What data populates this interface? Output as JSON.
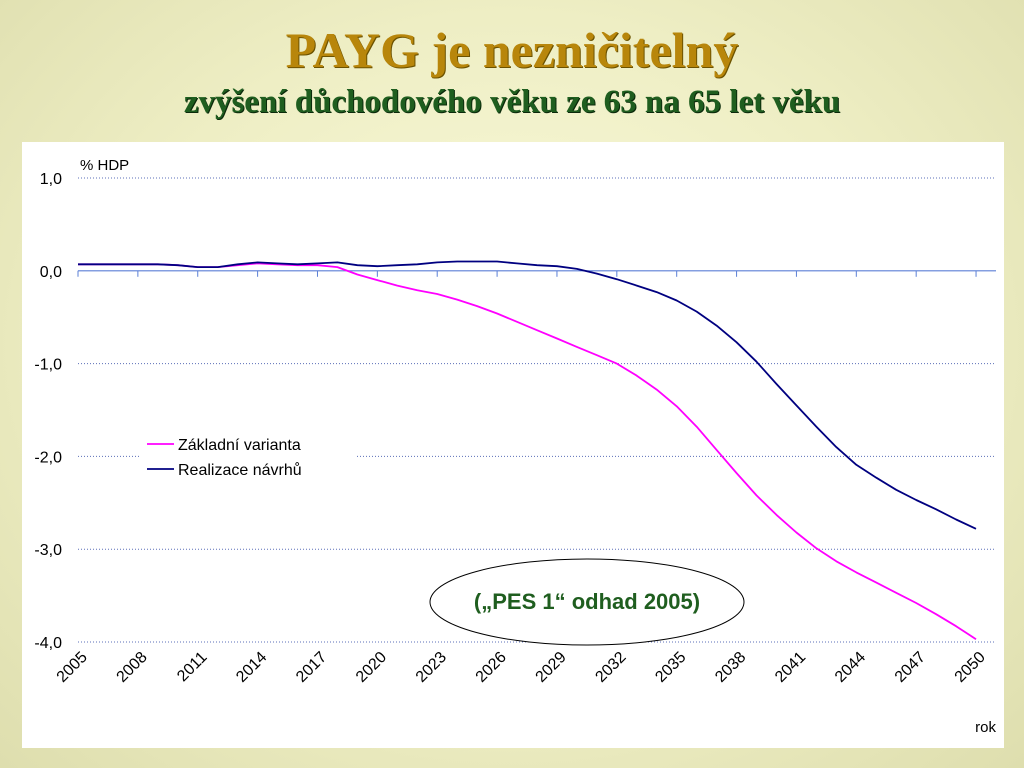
{
  "header": {
    "title": "PAYG je nezničitelný",
    "subtitle": "zvýšení  důchodového věku ze 63 na 65 let věku"
  },
  "chart_data": {
    "type": "line",
    "ylabel": "% HDP",
    "xlabel": "rok",
    "ylim": [
      -4.0,
      1.0
    ],
    "xlim": [
      2005,
      2051
    ],
    "y_ticks": [
      1.0,
      0.0,
      -1.0,
      -2.0,
      -3.0,
      -4.0
    ],
    "y_tick_labels": [
      "1,0",
      "0,0",
      "-1,0",
      "-2,0",
      "-3,0",
      "-4,0"
    ],
    "x_ticks": [
      "2005",
      "2008",
      "2011",
      "2014",
      "2017",
      "2020",
      "2023",
      "2026",
      "2029",
      "2032",
      "2035",
      "2038",
      "2041",
      "2044",
      "2047",
      "2050"
    ],
    "grid": "horizontal dotted",
    "legend_position": "left-middle",
    "annotation": "(„PES 1“ odhad 2005)",
    "colors": {
      "zakladni": "#ff00ff",
      "realizace": "#000080",
      "zero_axis": "#5b7fd6"
    },
    "series": [
      {
        "name": "Základní varianta",
        "x": [
          2005,
          2006,
          2007,
          2008,
          2009,
          2010,
          2011,
          2012,
          2013,
          2014,
          2015,
          2016,
          2017,
          2018,
          2019,
          2020,
          2021,
          2022,
          2023,
          2024,
          2025,
          2026,
          2027,
          2028,
          2029,
          2030,
          2031,
          2032,
          2033,
          2034,
          2035,
          2036,
          2037,
          2038,
          2039,
          2040,
          2041,
          2042,
          2043,
          2044,
          2045,
          2046,
          2047,
          2048,
          2049,
          2050
        ],
        "values": [
          0.07,
          0.07,
          0.07,
          0.07,
          0.07,
          0.06,
          0.04,
          0.04,
          0.06,
          0.08,
          0.07,
          0.06,
          0.06,
          0.04,
          -0.04,
          -0.1,
          -0.16,
          -0.21,
          -0.25,
          -0.31,
          -0.38,
          -0.46,
          -0.55,
          -0.64,
          -0.73,
          -0.82,
          -0.91,
          -1.0,
          -1.13,
          -1.28,
          -1.46,
          -1.68,
          -1.93,
          -2.18,
          -2.42,
          -2.63,
          -2.82,
          -2.99,
          -3.13,
          -3.25,
          -3.36,
          -3.47,
          -3.58,
          -3.7,
          -3.83,
          -3.97
        ]
      },
      {
        "name": "Realizace návrhů",
        "x": [
          2005,
          2006,
          2007,
          2008,
          2009,
          2010,
          2011,
          2012,
          2013,
          2014,
          2015,
          2016,
          2017,
          2018,
          2019,
          2020,
          2021,
          2022,
          2023,
          2024,
          2025,
          2026,
          2027,
          2028,
          2029,
          2030,
          2031,
          2032,
          2033,
          2034,
          2035,
          2036,
          2037,
          2038,
          2039,
          2040,
          2041,
          2042,
          2043,
          2044,
          2045,
          2046,
          2047,
          2048,
          2049,
          2050
        ],
        "values": [
          0.07,
          0.07,
          0.07,
          0.07,
          0.07,
          0.06,
          0.04,
          0.04,
          0.07,
          0.09,
          0.08,
          0.07,
          0.08,
          0.09,
          0.06,
          0.05,
          0.06,
          0.07,
          0.09,
          0.1,
          0.1,
          0.1,
          0.08,
          0.06,
          0.05,
          0.02,
          -0.03,
          -0.09,
          -0.16,
          -0.23,
          -0.32,
          -0.44,
          -0.59,
          -0.77,
          -0.98,
          -1.22,
          -1.45,
          -1.68,
          -1.9,
          -2.09,
          -2.23,
          -2.36,
          -2.47,
          -2.57,
          -2.68,
          -2.78
        ]
      }
    ]
  }
}
